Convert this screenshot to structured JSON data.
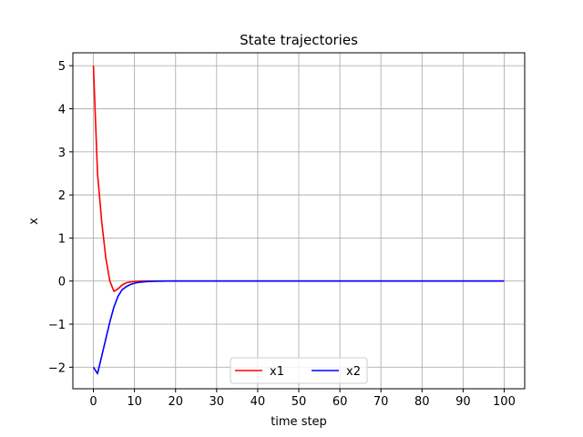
{
  "chart_data": {
    "type": "line",
    "title": "State trajectories",
    "xlabel": "time step",
    "ylabel": "x",
    "xlim": [
      -5,
      105
    ],
    "ylim": [
      -2.5,
      5.3
    ],
    "xticks": [
      0,
      10,
      20,
      30,
      40,
      50,
      60,
      70,
      80,
      90,
      100
    ],
    "yticks": [
      -2,
      -1,
      0,
      1,
      2,
      3,
      4,
      5
    ],
    "xtick_labels": [
      "0",
      "10",
      "20",
      "30",
      "40",
      "50",
      "60",
      "70",
      "80",
      "90",
      "100"
    ],
    "ytick_labels": [
      "−2",
      "−1",
      "0",
      "1",
      "2",
      "3",
      "4",
      "5"
    ],
    "grid": true,
    "legend": {
      "position": "lower-center",
      "columns": 2
    },
    "series": [
      {
        "name": "x1",
        "color": "#ff0000",
        "x": [
          0,
          1,
          2,
          3,
          4,
          5,
          6,
          7,
          8,
          9,
          10,
          11,
          12,
          13,
          14,
          15,
          16,
          17,
          18,
          19,
          20,
          30,
          40,
          50,
          60,
          70,
          80,
          90,
          100
        ],
        "y": [
          5.0,
          2.5,
          1.4,
          0.55,
          0.0,
          -0.24,
          -0.18,
          -0.09,
          -0.04,
          -0.02,
          -0.01,
          -0.005,
          0,
          0,
          0,
          0,
          0,
          0,
          0,
          0,
          0,
          0,
          0,
          0,
          0,
          0,
          0,
          0,
          0
        ]
      },
      {
        "name": "x2",
        "color": "#0000ff",
        "x": [
          0,
          1,
          2,
          3,
          4,
          5,
          6,
          7,
          8,
          9,
          10,
          11,
          12,
          13,
          14,
          15,
          16,
          17,
          18,
          19,
          20,
          30,
          40,
          50,
          60,
          70,
          80,
          90,
          100
        ],
        "y": [
          -2.0,
          -2.15,
          -1.75,
          -1.35,
          -0.95,
          -0.6,
          -0.35,
          -0.2,
          -0.13,
          -0.08,
          -0.05,
          -0.03,
          -0.02,
          -0.012,
          -0.007,
          -0.004,
          -0.002,
          -0.001,
          0,
          0,
          0,
          0,
          0,
          0,
          0,
          0,
          0,
          0,
          0
        ]
      }
    ]
  }
}
